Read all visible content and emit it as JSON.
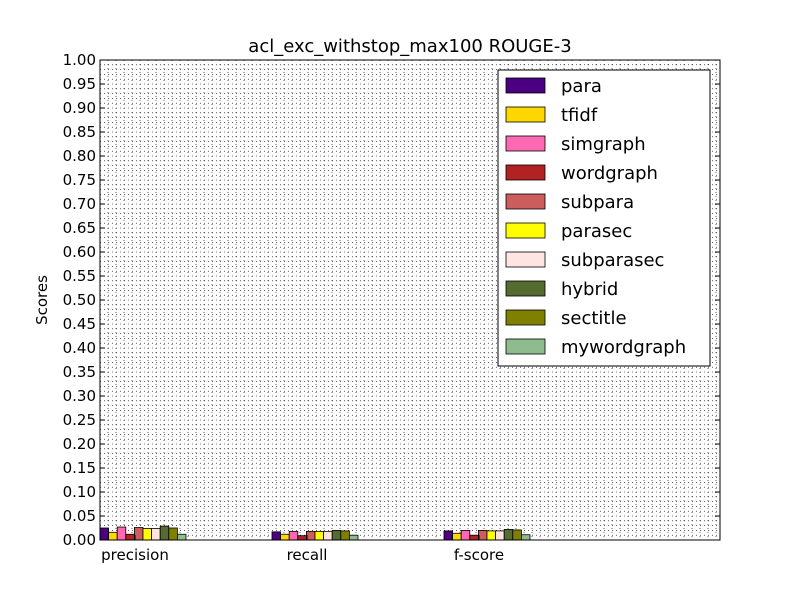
{
  "chart_data": {
    "type": "bar",
    "title": "acl_exc_withstop_max100 ROUGE-3",
    "xlabel": "",
    "ylabel": "Scores",
    "ylim": [
      0,
      1.0
    ],
    "yticks": [
      "0.00",
      "0.05",
      "0.10",
      "0.15",
      "0.20",
      "0.25",
      "0.30",
      "0.35",
      "0.40",
      "0.45",
      "0.50",
      "0.55",
      "0.60",
      "0.65",
      "0.70",
      "0.75",
      "0.80",
      "0.85",
      "0.90",
      "0.95",
      "1.00"
    ],
    "grid": true,
    "legend_position": "top-right",
    "categories": [
      "precision",
      "recall",
      "f-score"
    ],
    "series": [
      {
        "name": "para",
        "color": "#4b0082",
        "values": [
          0.025,
          0.017,
          0.019
        ]
      },
      {
        "name": "tfidf",
        "color": "#ffd700",
        "values": [
          0.016,
          0.012,
          0.014
        ]
      },
      {
        "name": "simgraph",
        "color": "#ff69b4",
        "values": [
          0.027,
          0.018,
          0.02
        ]
      },
      {
        "name": "wordgraph",
        "color": "#b22222",
        "values": [
          0.012,
          0.009,
          0.01
        ]
      },
      {
        "name": "subpara",
        "color": "#cd5c5c",
        "values": [
          0.026,
          0.018,
          0.02
        ]
      },
      {
        "name": "parasec",
        "color": "#ffff00",
        "values": [
          0.024,
          0.018,
          0.019
        ]
      },
      {
        "name": "subparasec",
        "color": "#ffe4e1",
        "values": [
          0.024,
          0.018,
          0.019
        ]
      },
      {
        "name": "hybrid",
        "color": "#556b2f",
        "values": [
          0.029,
          0.02,
          0.022
        ]
      },
      {
        "name": "sectitle",
        "color": "#808000",
        "values": [
          0.025,
          0.019,
          0.021
        ]
      },
      {
        "name": "mywordgraph",
        "color": "#8fbc8f",
        "values": [
          0.012,
          0.01,
          0.011
        ]
      }
    ]
  }
}
